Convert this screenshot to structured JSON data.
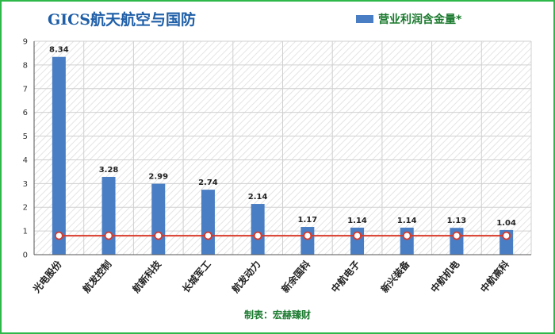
{
  "chart_data": {
    "type": "bar",
    "title": "GICS航天航空与国防",
    "categories": [
      "光电股份",
      "航发控制",
      "航新科技",
      "长城军工",
      "航发动力",
      "新余国科",
      "中航电子",
      "新兴装备",
      "中航机电",
      "中航高科"
    ],
    "series": [
      {
        "name": "营业利润含金量*",
        "type": "bar",
        "color": "#4a7ec4",
        "values": [
          8.34,
          3.28,
          2.99,
          2.74,
          2.14,
          1.17,
          1.14,
          1.14,
          1.13,
          1.04
        ],
        "data_labels": [
          "8.34",
          "3.28",
          "2.99",
          "2.74",
          "2.14",
          "1.17",
          "1.14",
          "1.14",
          "1.13",
          "1.04"
        ]
      },
      {
        "type": "line",
        "color": "#d83a2a",
        "marker_fill": "#ffffff",
        "values": [
          0.8,
          0.8,
          0.8,
          0.8,
          0.8,
          0.8,
          0.8,
          0.8,
          0.8,
          0.8
        ]
      }
    ],
    "ylim": [
      0,
      9
    ],
    "yticks": [
      "0",
      "1",
      "2",
      "3",
      "4",
      "5",
      "6",
      "7",
      "8",
      "9"
    ],
    "xlabel": "",
    "ylabel": "",
    "legend_position": "top-right",
    "grid": true,
    "background_pattern": "diagonal hatch",
    "credit": "制表：宏赫臻财"
  },
  "colors": {
    "frame": "#2fb84a",
    "title": "#1f5fa8",
    "legend_text": "#1a7a2e",
    "grid": "#d0d0d0"
  }
}
